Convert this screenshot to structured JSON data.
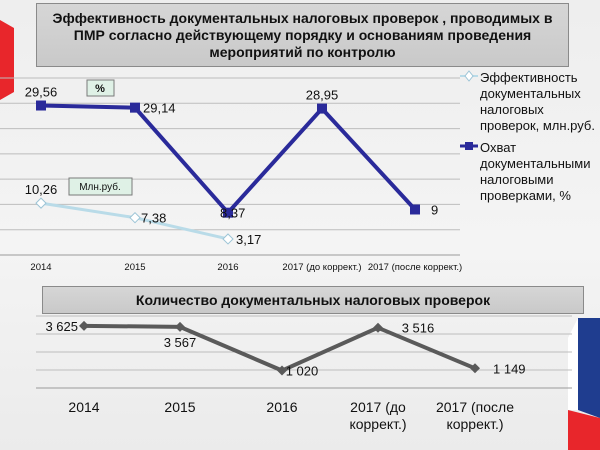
{
  "colors": {
    "background": "#f0f0f0",
    "title_box": "#d0d0d0",
    "effectiveness": "#b9dbe8",
    "coverage": "#2a2a9a",
    "count": "#5a5a5a",
    "accent_red": "#e8262b",
    "accent_blue": "#1f3d8f"
  },
  "chart_data": [
    {
      "type": "line",
      "title": "Эффективность документальных налоговых проверок , проводимых в ПМР  согласно  действующему порядку и основаниям проведения мероприятий по контролю",
      "categories": [
        "2014",
        "2015",
        "2016",
        "2017 (до коррект.)",
        "2017 (после коррект.)"
      ],
      "series": [
        {
          "name": "Эффективность документальных налоговых проверок, млн.руб.",
          "values": [
            10.26,
            7.38,
            3.17,
            null,
            null
          ],
          "labels": [
            "10,26",
            "7,38",
            "3,17",
            "",
            ""
          ],
          "color": "#b9dbe8",
          "marker": "diamond"
        },
        {
          "name": "Охват документальными налоговыми проверками, %",
          "values": [
            29.56,
            29.14,
            8.37,
            28.95,
            9
          ],
          "labels": [
            "29,56",
            "29,14",
            "8,37",
            "28,95",
            "9"
          ],
          "color": "#2a2a9a",
          "marker": "square"
        }
      ],
      "annotations": [
        "%",
        "Млн.руб."
      ],
      "ylim": [
        0,
        35
      ],
      "grid": true,
      "legend": "right"
    },
    {
      "type": "line",
      "title": "Количество документальных налоговых проверок",
      "categories": [
        "2014",
        "2015",
        "2016",
        "2017 (до\nкоррект.)",
        "2017 (после\nкоррект.)"
      ],
      "series": [
        {
          "values": [
            3625,
            3567,
            1020,
            3516,
            1149
          ],
          "labels": [
            "3 625",
            "3 567",
            "1 020",
            "3 516",
            "1 149"
          ],
          "color": "#5a5a5a",
          "marker": "diamond"
        }
      ],
      "ylim": [
        0,
        4200
      ],
      "grid": true
    }
  ]
}
